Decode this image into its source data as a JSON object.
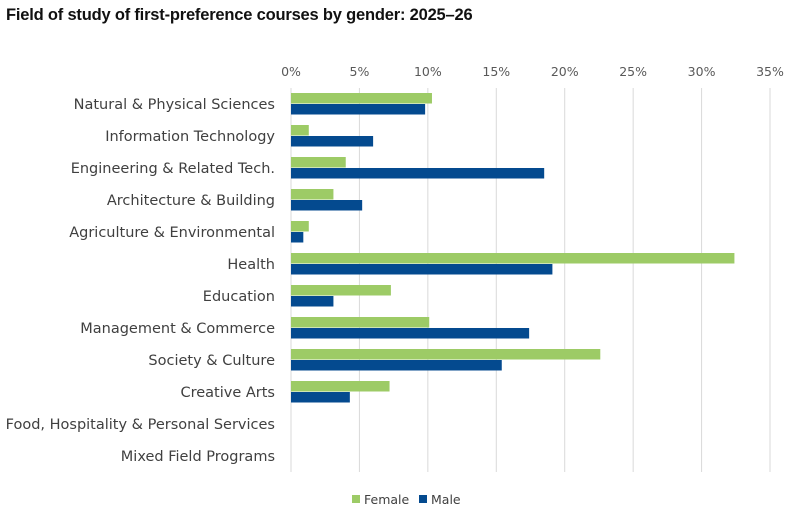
{
  "chart_data": {
    "type": "bar",
    "orientation": "horizontal",
    "title": "Field of study of first-preference courses by gender: 2025–26",
    "xlabel": "",
    "ylabel": "",
    "xlim": [
      0,
      35
    ],
    "x_ticks": [
      "0%",
      "5%",
      "10%",
      "15%",
      "20%",
      "25%",
      "30%",
      "35%"
    ],
    "x_tick_values": [
      0,
      5,
      10,
      15,
      20,
      25,
      30,
      35
    ],
    "x_axis_position": "top",
    "grid": true,
    "legend_position": "bottom",
    "categories": [
      "Natural & Physical Sciences",
      "Information Technology",
      "Engineering & Related Tech.",
      "Architecture & Building",
      "Agriculture & Environmental",
      "Health",
      "Education",
      "Management & Commerce",
      "Society & Culture",
      "Creative Arts",
      "Food, Hospitality & Personal Services",
      "Mixed Field Programs"
    ],
    "series": [
      {
        "name": "Female",
        "color": "#9DCB66",
        "values": [
          10.3,
          1.3,
          4.0,
          3.1,
          1.3,
          32.4,
          7.3,
          10.1,
          22.6,
          7.2,
          0,
          0
        ]
      },
      {
        "name": "Male",
        "color": "#044A8F",
        "values": [
          9.8,
          6.0,
          18.5,
          5.2,
          0.9,
          19.1,
          3.1,
          17.4,
          15.4,
          4.3,
          0,
          0
        ]
      }
    ],
    "unit": "%"
  }
}
